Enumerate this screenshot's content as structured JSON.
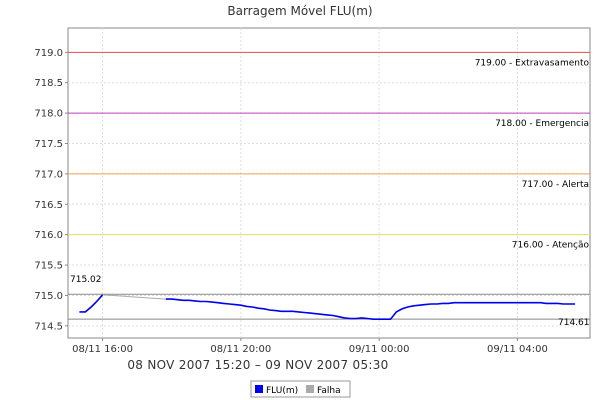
{
  "chart_data": {
    "type": "line",
    "title": "Barragem Móvel FLU(m)",
    "subtitle": "08 NOV 2007 15:20 – 09 NOV 2007 05:30",
    "xlabel": "",
    "ylabel": "",
    "x_ticks": [
      "08/11 16:00",
      "08/11 20:00",
      "09/11 00:00",
      "09/11 04:00"
    ],
    "x_tick_hours": [
      16,
      20,
      24,
      28
    ],
    "x_range_hours": [
      15.0,
      30.1
    ],
    "ylim": [
      714.3,
      719.4
    ],
    "y_ticks": [
      714.5,
      715.0,
      715.5,
      716.0,
      716.5,
      717.0,
      717.5,
      718.0,
      718.5,
      719.0
    ],
    "grid": true,
    "legend_position": "bottom-center",
    "reference_lines": [
      {
        "value": 719.0,
        "label": "719.00 - Extravasamento",
        "color": "#e05050"
      },
      {
        "value": 718.0,
        "label": "718.00 - Emergencia",
        "color": "#c040c0"
      },
      {
        "value": 717.0,
        "label": "717.00 - Alerta",
        "color": "#f0a050"
      },
      {
        "value": 716.0,
        "label": "716.00 - Atenção",
        "color": "#e8e060"
      }
    ],
    "annotations": {
      "max_label": "715.02",
      "min_label": "714.61",
      "max_value": 715.02,
      "min_value": 714.61
    },
    "series": [
      {
        "name": "FLU(m)",
        "color": "#0000ee",
        "x_hours": [
          15.33,
          15.5,
          15.67,
          15.83,
          16.0
        ],
        "values": [
          714.73,
          714.73,
          714.81,
          714.9,
          715.01
        ]
      },
      {
        "name": "FLU(m)",
        "color": "#0000ee",
        "x_hours": [
          17.83,
          18.0,
          18.17,
          18.33,
          18.5,
          18.67,
          18.83,
          19.0,
          19.17,
          19.33,
          19.5,
          19.67,
          19.83,
          20.0,
          20.17,
          20.33,
          20.5,
          20.67,
          20.83,
          21.0,
          21.17,
          21.33,
          21.5,
          21.67,
          21.83,
          22.0,
          22.17,
          22.33,
          22.5,
          22.67,
          22.83,
          23.0,
          23.17,
          23.33,
          23.5,
          23.67,
          23.83,
          24.0,
          24.17,
          24.33,
          24.5,
          24.67,
          24.83,
          25.0,
          25.17,
          25.33,
          25.5,
          25.67,
          25.83,
          26.0,
          26.17,
          26.33,
          26.5,
          26.67,
          26.83,
          27.0,
          27.17,
          27.33,
          27.5,
          27.67,
          27.83,
          28.0,
          28.17,
          28.33,
          28.5,
          28.67,
          28.83,
          29.0,
          29.17,
          29.33,
          29.5,
          29.67
        ],
        "values": [
          714.94,
          714.94,
          714.93,
          714.92,
          714.92,
          714.91,
          714.9,
          714.9,
          714.89,
          714.88,
          714.87,
          714.86,
          714.85,
          714.84,
          714.82,
          714.81,
          714.79,
          714.78,
          714.76,
          714.75,
          714.74,
          714.74,
          714.74,
          714.73,
          714.72,
          714.71,
          714.7,
          714.69,
          714.68,
          714.67,
          714.65,
          714.63,
          714.62,
          714.62,
          714.63,
          714.62,
          714.61,
          714.61,
          714.61,
          714.61,
          714.73,
          714.78,
          714.81,
          714.83,
          714.84,
          714.85,
          714.86,
          714.86,
          714.87,
          714.87,
          714.88,
          714.88,
          714.88,
          714.88,
          714.88,
          714.88,
          714.88,
          714.88,
          714.88,
          714.88,
          714.88,
          714.88,
          714.88,
          714.88,
          714.88,
          714.88,
          714.87,
          714.87,
          714.87,
          714.86,
          714.86,
          714.86
        ]
      },
      {
        "name": "Falha",
        "color": "#aaaaaa",
        "x_hours": [
          16.0,
          17.83
        ],
        "values": [
          715.01,
          714.94
        ]
      }
    ]
  },
  "legend": [
    {
      "label": "FLU(m)",
      "color": "#0000ee"
    },
    {
      "label": "Falha",
      "color": "#aaaaaa"
    }
  ]
}
